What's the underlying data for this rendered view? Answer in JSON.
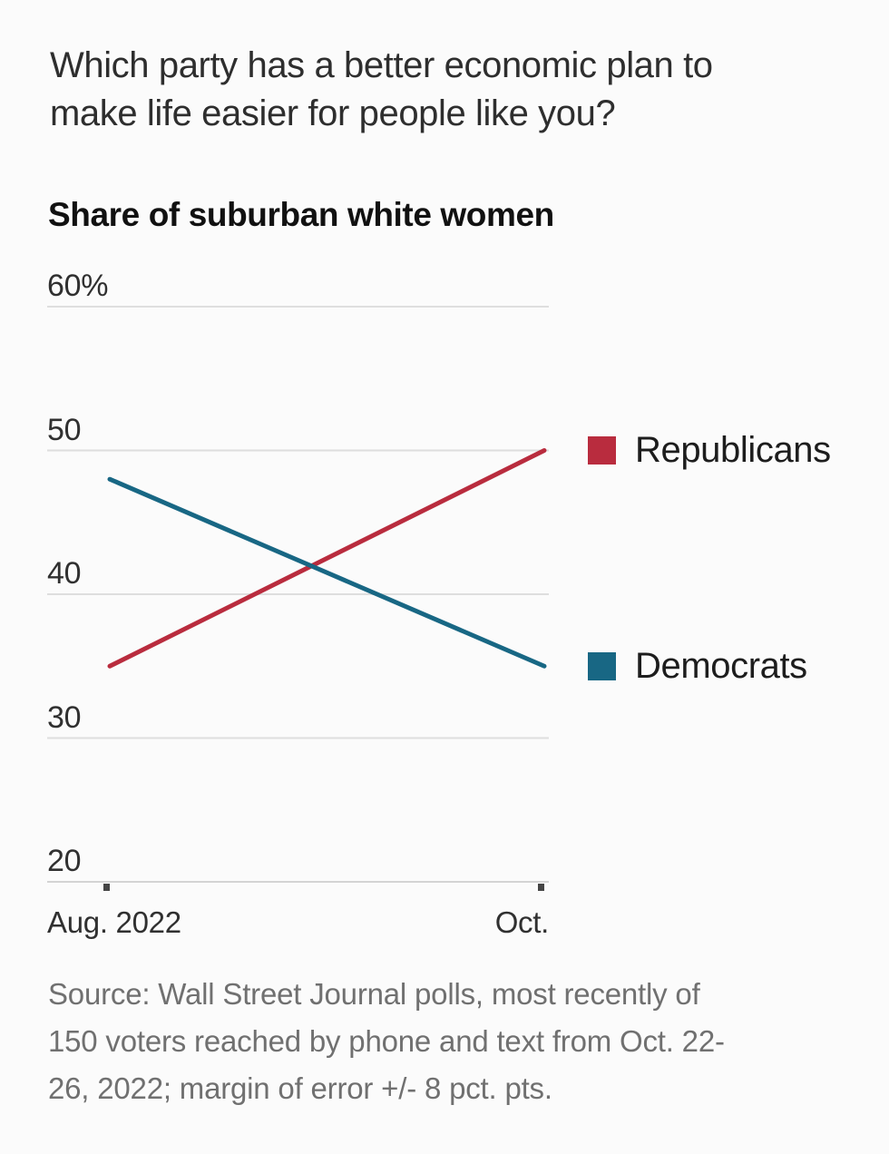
{
  "header": {
    "question_lines": [
      "Which party has a better economic plan to",
      "make life easier for people like you?"
    ],
    "subtitle": "Share of suburban white women"
  },
  "chart_data": {
    "type": "line",
    "title": "Share of suburban white women",
    "categories": [
      "Aug. 2022",
      "Oct."
    ],
    "series": [
      {
        "name": "Republicans",
        "color": "#b92c3e",
        "values": [
          35,
          50
        ]
      },
      {
        "name": "Democrats",
        "color": "#186784",
        "values": [
          48,
          35
        ]
      }
    ],
    "y_ticks": [
      {
        "value": 60,
        "label": "60%"
      },
      {
        "value": 50,
        "label": "50"
      },
      {
        "value": 40,
        "label": "40"
      },
      {
        "value": 30,
        "label": "30"
      },
      {
        "value": 20,
        "label": "20"
      }
    ],
    "ylim": [
      20,
      60
    ],
    "unit": "percent",
    "grid": "horizontal",
    "legend_position": "right"
  },
  "source_lines": [
    "Source: Wall Street Journal polls, most recently of",
    "150 voters reached by phone and text from Oct. 22-",
    "26, 2022; margin of error +/- 8 pct. pts."
  ],
  "colors": {
    "republicans": "#b92c3e",
    "democrats": "#186784",
    "gridline": "#dedede",
    "axis_line": "#d4d4d4",
    "tick_mark": "#454545",
    "title_text": "#2e2e2e",
    "subtitle_text": "#111111",
    "axis_text": "#303030",
    "legend_text": "#1d1d1d",
    "source_text": "#707070",
    "background": "#fbfbfb"
  }
}
